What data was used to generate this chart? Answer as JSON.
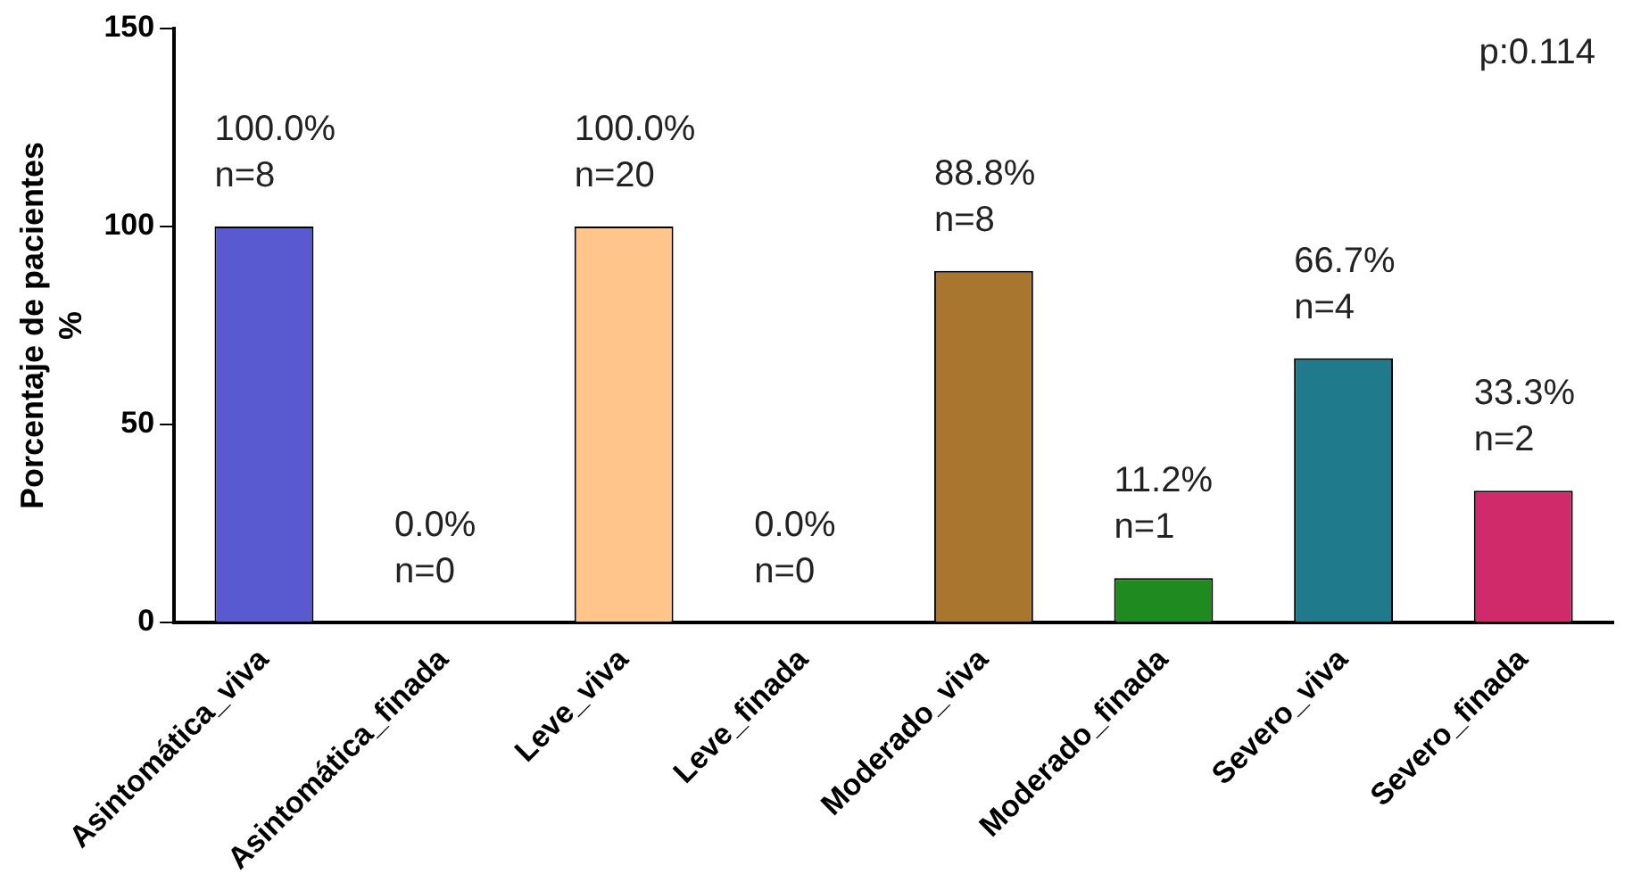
{
  "chart_data": {
    "type": "bar",
    "ylabel": "Porcentaje de pacientes\n%",
    "categories": [
      "Asintomática_viva",
      "Asintomática_finada",
      "Leve_viva",
      "Leve_finada",
      "Moderado_viva",
      "Moderado_finada",
      "Severo_viva",
      "Severo_finada"
    ],
    "values": [
      100,
      0,
      100,
      0,
      88.8,
      11.2,
      66.7,
      33.3
    ],
    "colors": [
      "#5a5ad0",
      "#ffffff",
      "#ffc58a",
      "#ffffff",
      "#a8762e",
      "#1f8a1f",
      "#1f7a8c",
      "#d02a6a"
    ],
    "value_labels": [
      "100.0%\nn=8",
      "0.0%\nn=0",
      "100.0%\nn=20",
      "0.0%\nn=0",
      "88.8%\nn=8",
      "11.2%\nn=1",
      "66.7%\nn=4",
      "33.3%\nn=2"
    ],
    "ylim": [
      0,
      150
    ],
    "yticks": [
      0,
      50,
      100,
      150
    ],
    "grid": false,
    "legend": false,
    "annotations": [
      "p:0.114"
    ]
  }
}
